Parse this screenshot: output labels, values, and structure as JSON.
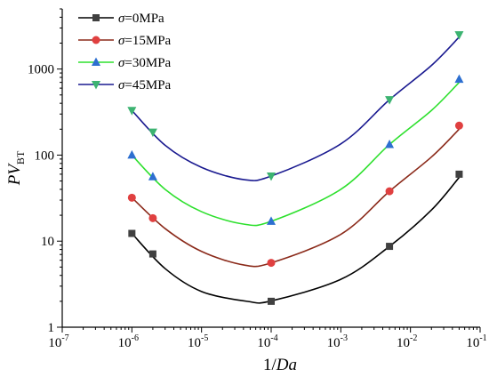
{
  "chart_data": {
    "type": "line",
    "x_scale": "log",
    "y_scale": "log",
    "xlim": [
      1e-07,
      0.1
    ],
    "ylim": [
      1,
      5000
    ],
    "xlabel": "1/Da",
    "ylabel": "PV_BT",
    "xticks": [
      {
        "value": 1e-07,
        "base": "10",
        "exp": "-7"
      },
      {
        "value": 1e-06,
        "base": "10",
        "exp": "-6"
      },
      {
        "value": 1e-05,
        "base": "10",
        "exp": "-5"
      },
      {
        "value": 0.0001,
        "base": "10",
        "exp": "-4"
      },
      {
        "value": 0.001,
        "base": "10",
        "exp": "-3"
      },
      {
        "value": 0.01,
        "base": "10",
        "exp": "-2"
      },
      {
        "value": 0.1,
        "base": "10",
        "exp": "-1"
      }
    ],
    "yticks": [
      {
        "value": 1,
        "label": "1"
      },
      {
        "value": 10,
        "label": "10"
      },
      {
        "value": 100,
        "label": "100"
      },
      {
        "value": 1000,
        "label": "1000"
      }
    ],
    "legend_position": "top-left",
    "series": [
      {
        "name": "σ=0MPa",
        "sigma_symbol": "σ",
        "sigma_value": "=0MPa",
        "color": "#000000",
        "marker": "square",
        "marker_color": "#404040",
        "x": [
          1e-06,
          2e-06,
          0.0001,
          0.005,
          0.05
        ],
        "y": [
          12.3,
          7.1,
          2.0,
          8.7,
          60
        ],
        "fit": [
          [
            1e-06,
            12.3
          ],
          [
            3e-06,
            4.8
          ],
          [
            1e-05,
            2.6
          ],
          [
            4.5e-05,
            2.0
          ],
          [
            0.0001,
            2.02
          ],
          [
            0.001,
            3.6
          ],
          [
            0.005,
            8.7
          ],
          [
            0.02,
            23
          ],
          [
            0.05,
            55
          ]
        ]
      },
      {
        "name": "σ=15MPa",
        "sigma_symbol": "σ",
        "sigma_value": "=15MPa",
        "color": "#8b2a1a",
        "marker": "circle",
        "marker_color": "#e04040",
        "x": [
          1e-06,
          2e-06,
          0.0001,
          0.005,
          0.05
        ],
        "y": [
          32,
          18.5,
          5.6,
          38,
          220
        ],
        "fit": [
          [
            1e-06,
            32
          ],
          [
            3e-06,
            14
          ],
          [
            1e-05,
            7.6
          ],
          [
            4e-05,
            5.3
          ],
          [
            0.0001,
            5.6
          ],
          [
            0.001,
            12
          ],
          [
            0.005,
            38
          ],
          [
            0.02,
            95
          ],
          [
            0.05,
            200
          ]
        ]
      },
      {
        "name": "σ=30MPa",
        "sigma_symbol": "σ",
        "sigma_value": "=30MPa",
        "color": "#2ee02e",
        "marker": "triangle-up",
        "marker_color": "#2d6fd0",
        "x": [
          1e-06,
          2e-06,
          0.0001,
          0.005,
          0.05
        ],
        "y": [
          100,
          56,
          17,
          133,
          760
        ],
        "fit": [
          [
            1e-06,
            100
          ],
          [
            3e-06,
            40
          ],
          [
            1e-05,
            22
          ],
          [
            4e-05,
            15.8
          ],
          [
            0.0001,
            17
          ],
          [
            0.001,
            40
          ],
          [
            0.005,
            133
          ],
          [
            0.02,
            330
          ],
          [
            0.05,
            700
          ]
        ]
      },
      {
        "name": "σ=45MPa",
        "sigma_symbol": "σ",
        "sigma_value": "=45MPa",
        "color": "#1a1a90",
        "marker": "triangle-down",
        "marker_color": "#3cb371",
        "x": [
          1e-06,
          2e-06,
          0.0001,
          0.005,
          0.05
        ],
        "y": [
          330,
          185,
          57,
          440,
          2500
        ],
        "fit": [
          [
            1e-06,
            330
          ],
          [
            3e-06,
            130
          ],
          [
            1e-05,
            72
          ],
          [
            4e-05,
            52
          ],
          [
            0.0001,
            57
          ],
          [
            0.001,
            135
          ],
          [
            0.005,
            440
          ],
          [
            0.02,
            1100
          ],
          [
            0.05,
            2350
          ]
        ]
      }
    ]
  }
}
